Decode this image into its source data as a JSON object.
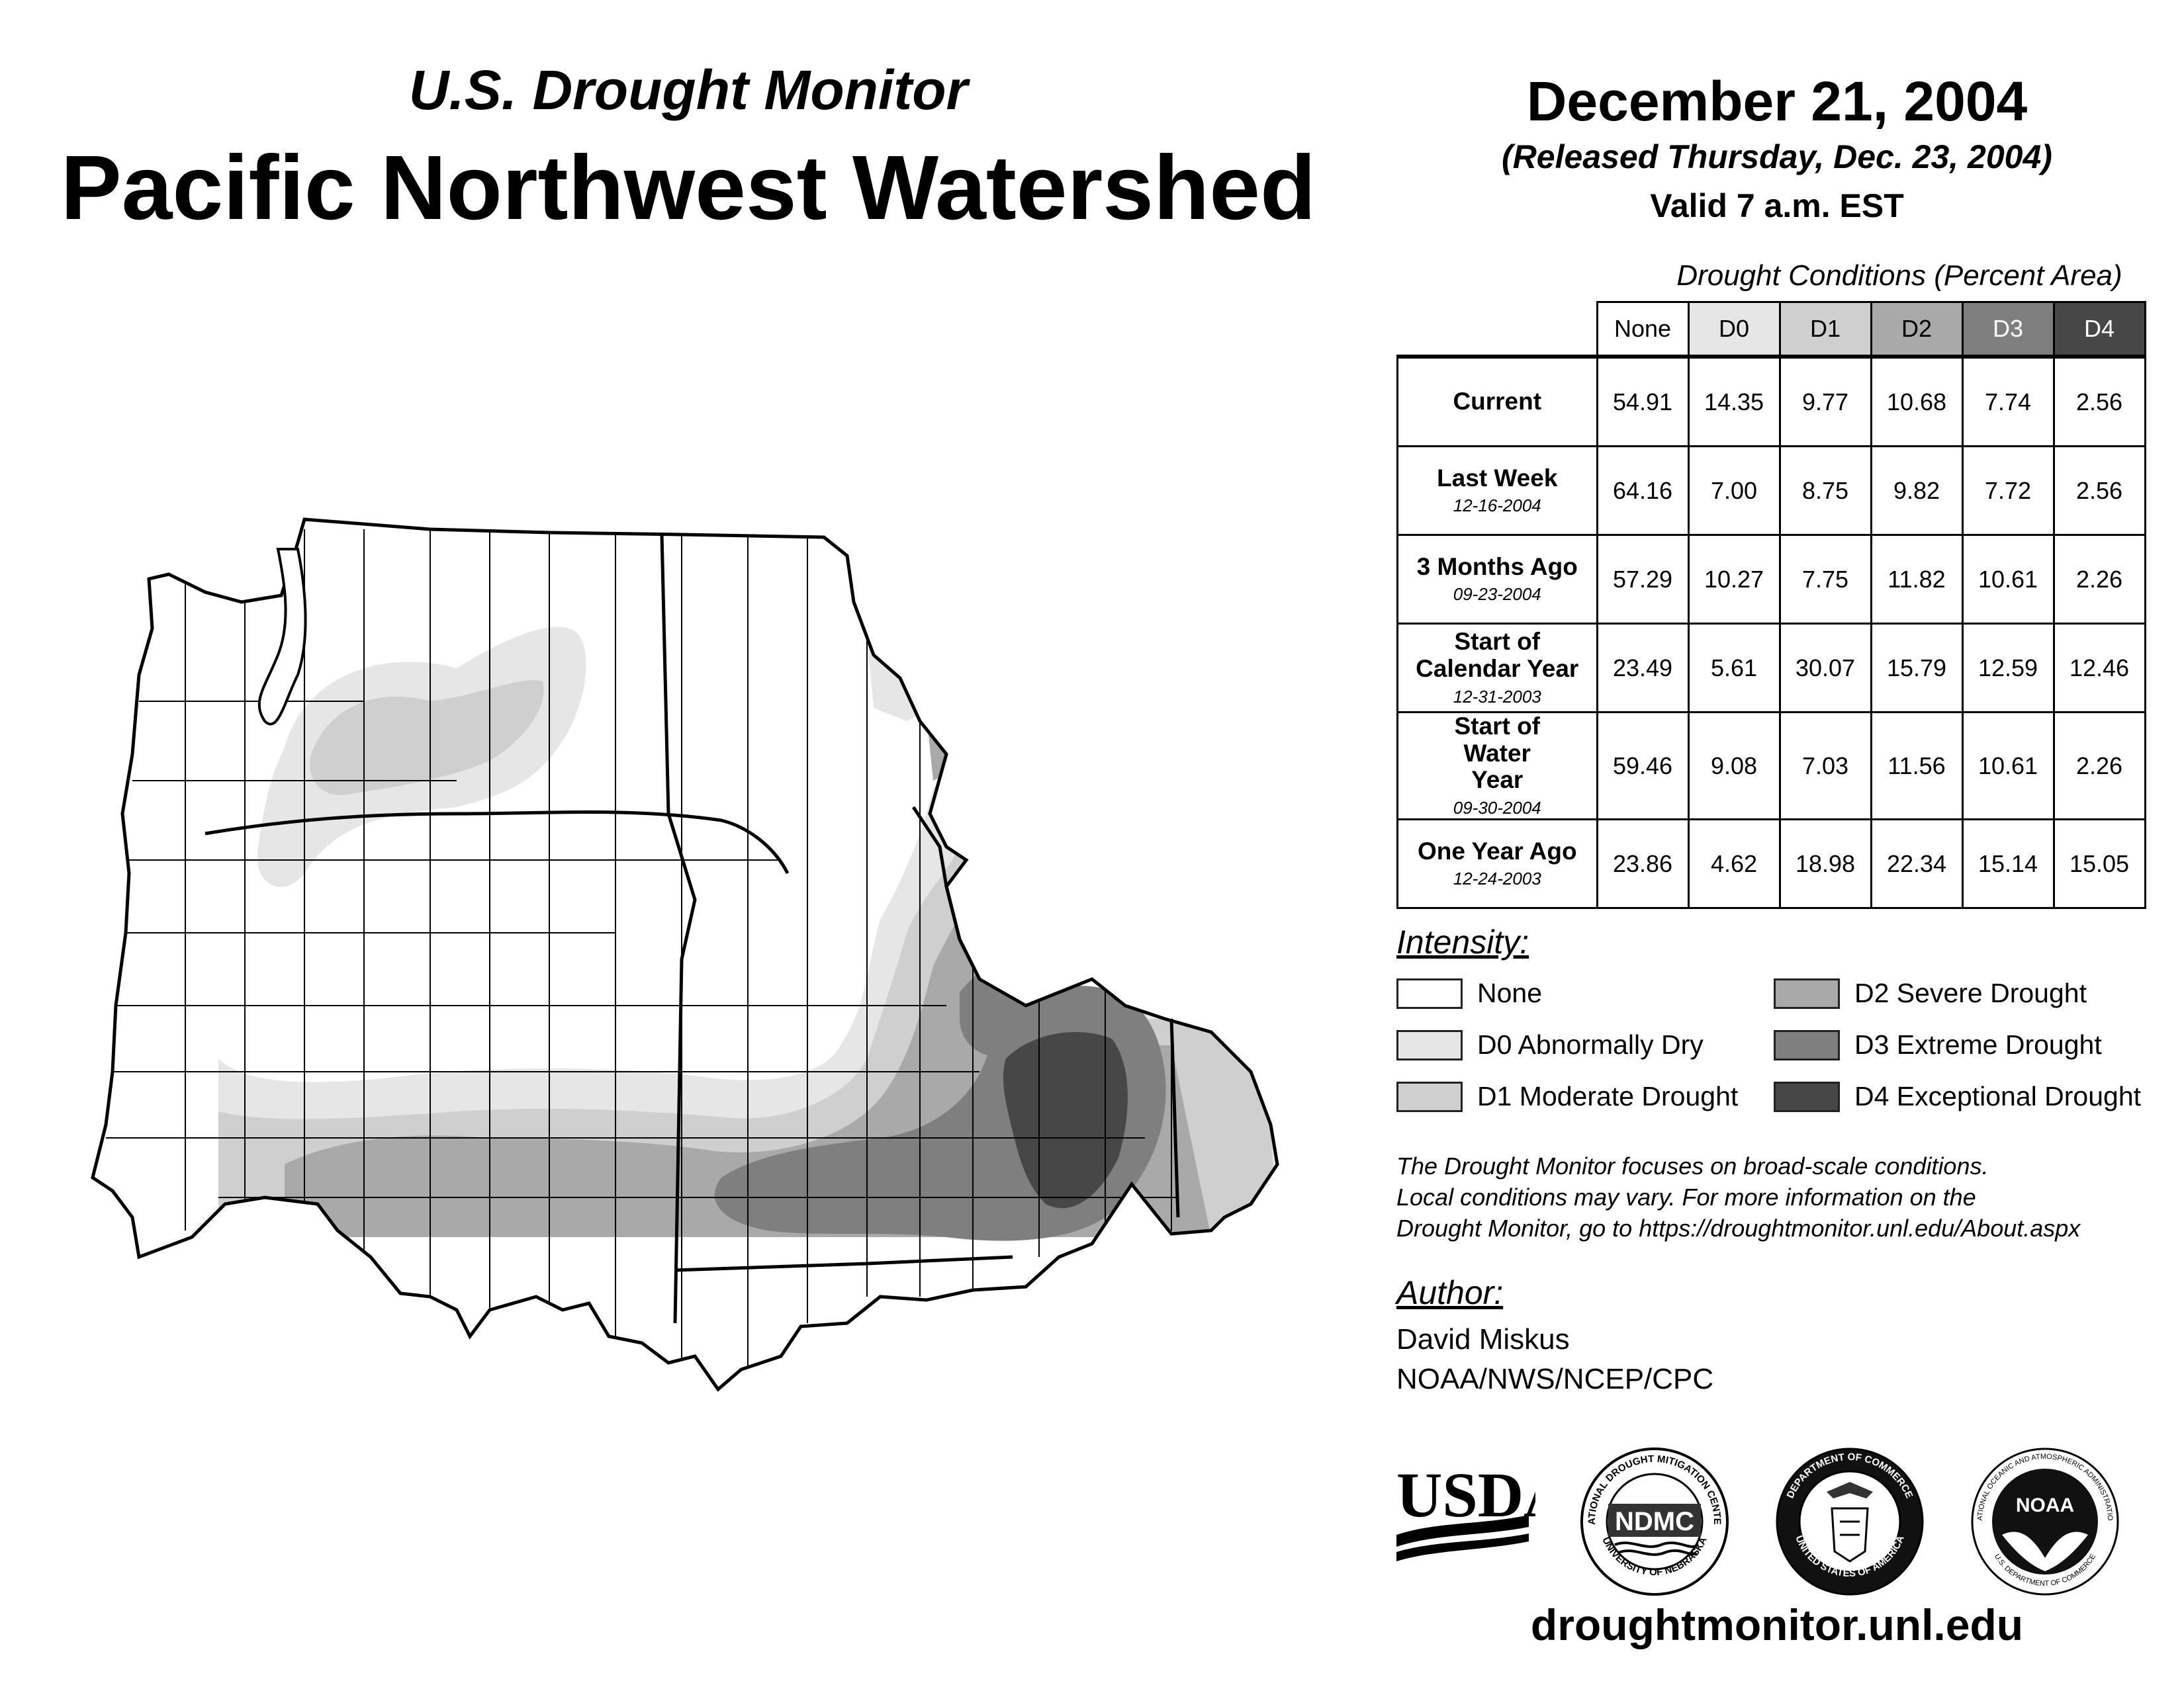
{
  "header": {
    "subtitle": "U.S. Drought Monitor",
    "title": "Pacific Northwest Watershed",
    "date": "December 21, 2004",
    "released": "(Released Thursday, Dec. 23, 2004)",
    "valid": "Valid 7 a.m. EST"
  },
  "table": {
    "caption": "Drought Conditions (Percent Area)",
    "columns": [
      "None",
      "D0",
      "D1",
      "D2",
      "D3",
      "D4"
    ],
    "column_colors": [
      "#ffffff",
      "#e6e6e6",
      "#cfcfcf",
      "#a9a9a9",
      "#7f7f7f",
      "#474747"
    ],
    "rows": [
      {
        "label": "Current",
        "date": "",
        "values": [
          "54.91",
          "14.35",
          "9.77",
          "10.68",
          "7.74",
          "2.56"
        ]
      },
      {
        "label": "Last Week",
        "date": "12-16-2004",
        "values": [
          "64.16",
          "7.00",
          "8.75",
          "9.82",
          "7.72",
          "2.56"
        ]
      },
      {
        "label": "3 Months Ago",
        "date": "09-23-2004",
        "values": [
          "57.29",
          "10.27",
          "7.75",
          "11.82",
          "10.61",
          "2.26"
        ]
      },
      {
        "label": "Start of Calendar Year",
        "date": "12-31-2003",
        "values": [
          "23.49",
          "5.61",
          "30.07",
          "15.79",
          "12.59",
          "12.46"
        ]
      },
      {
        "label": "Start of Water Year",
        "date": "09-30-2004",
        "values": [
          "59.46",
          "9.08",
          "7.03",
          "11.56",
          "10.61",
          "2.26"
        ]
      },
      {
        "label": "One Year Ago",
        "date": "12-24-2003",
        "values": [
          "23.86",
          "4.62",
          "18.98",
          "22.34",
          "15.14",
          "15.05"
        ]
      }
    ]
  },
  "legend": {
    "title": "Intensity:",
    "items": [
      {
        "label": "None",
        "color": "#ffffff"
      },
      {
        "label": "D0 Abnormally Dry",
        "color": "#e6e6e6"
      },
      {
        "label": "D1 Moderate Drought",
        "color": "#cfcfcf"
      },
      {
        "label": "D2 Severe Drought",
        "color": "#a9a9a9"
      },
      {
        "label": "D3 Extreme Drought",
        "color": "#7f7f7f"
      },
      {
        "label": "D4 Exceptional Drought",
        "color": "#474747"
      }
    ]
  },
  "note": {
    "line1": "The Drought Monitor focuses on broad-scale conditions.",
    "line2": "Local conditions may vary. For more information on the",
    "line3": "Drought Monitor, go to https://droughtmonitor.unl.edu/About.aspx"
  },
  "author": {
    "title": "Author:",
    "name": "David Miskus",
    "org": "NOAA/NWS/NCEP/CPC"
  },
  "logos": {
    "usda": "USDA",
    "ndmc": "NDMC",
    "ndmc_ring_top": "NATIONAL DROUGHT MITIGATION CENTER",
    "ndmc_ring_bottom": "UNIVERSITY OF NEBRASKA",
    "doc_ring_top": "DEPARTMENT OF COMMERCE",
    "doc_ring_bottom": "UNITED STATES OF AMERICA",
    "noaa": "NOAA",
    "noaa_ring": "NATIONAL OCEANIC AND ATMOSPHERIC ADMINISTRATION",
    "noaa_ring_bottom": "U.S. DEPARTMENT OF COMMERCE"
  },
  "url": "droughtmonitor.unl.edu"
}
